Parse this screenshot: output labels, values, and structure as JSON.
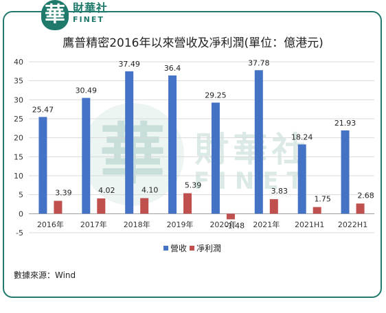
{
  "brand": {
    "name_cn": "財華社",
    "name_en": "FINET",
    "logo_char": "華"
  },
  "chart_data": {
    "type": "bar",
    "title": "鷹普精密2016年以來營收及凈利潤(單位：億港元)",
    "categories": [
      "2016年",
      "2017年",
      "2018年",
      "2019年",
      "2020年",
      "2021年",
      "2021H1",
      "2022H1"
    ],
    "series": [
      {
        "name": "營收",
        "color": "#4472c4",
        "values": [
          25.47,
          30.49,
          37.49,
          36.4,
          29.25,
          37.78,
          18.24,
          21.93
        ],
        "labels": [
          "25.47",
          "30.49",
          "37.49",
          "36.4",
          "29.25",
          "37.78",
          "18.24",
          "21.93"
        ]
      },
      {
        "name": "凈利潤",
        "color": "#c0504d",
        "values": [
          3.39,
          4.02,
          4.1,
          5.39,
          -1.48,
          3.83,
          1.75,
          2.68
        ],
        "labels": [
          "3.39",
          "4.02",
          "4.10",
          "5.39",
          "-1.48",
          "3.83",
          "1.75",
          "2.68"
        ]
      }
    ],
    "ylim": [
      -5,
      40
    ],
    "yticks": [
      -5,
      0,
      5,
      10,
      15,
      20,
      25,
      30,
      35,
      40
    ],
    "grid": true,
    "legend": "bottom"
  },
  "source": "數據來源：Wind"
}
